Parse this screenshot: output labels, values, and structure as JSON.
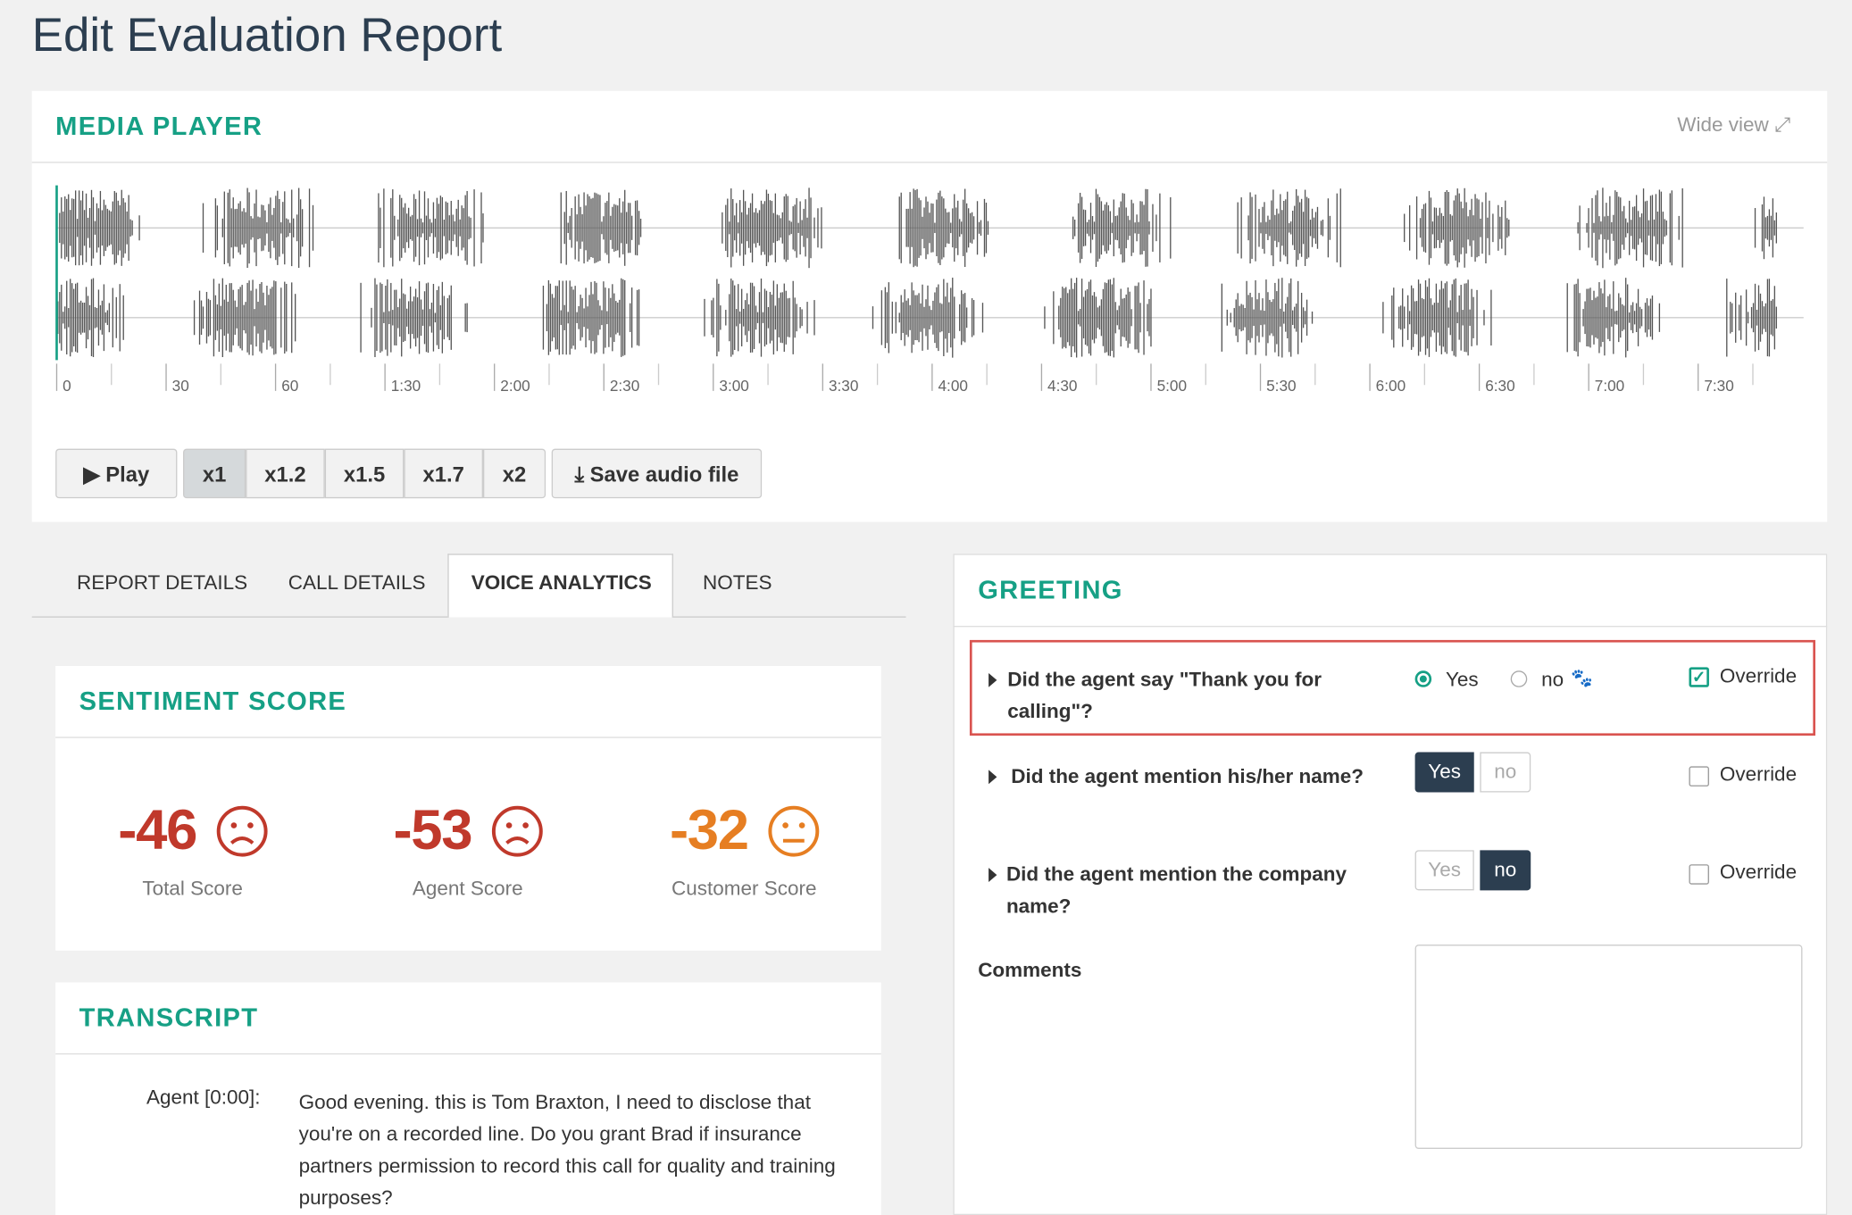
{
  "title": "Edit Evaluation Report",
  "media_player": {
    "heading": "MEDIA PLAYER",
    "wide_view": "Wide view",
    "timeline": [
      "0",
      "30",
      "60",
      "1:30",
      "2:00",
      "2:30",
      "3:00",
      "3:30",
      "4:00",
      "4:30",
      "5:00",
      "5:30",
      "6:00",
      "6:30",
      "7:00",
      "7:30"
    ],
    "play": "Play",
    "speeds": [
      "x1",
      "x1.2",
      "x1.5",
      "x1.7",
      "x2"
    ],
    "save": "Save audio file"
  },
  "tabs": [
    "REPORT DETAILS",
    "CALL DETAILS",
    "VOICE ANALYTICS",
    "NOTES"
  ],
  "sentiment": {
    "heading": "SENTIMENT SCORE",
    "scores": [
      {
        "value": -46,
        "label": "Total Score"
      },
      {
        "value": -53,
        "label": "Agent Score"
      },
      {
        "value": -32,
        "label": "Customer Score"
      }
    ]
  },
  "transcript": {
    "heading": "TRANSCRIPT",
    "entries": [
      {
        "speaker": "Agent [0:00]:",
        "text": "Good evening. this is Tom Braxton, I need to disclose that you're on a recorded line. Do you grant Brad if insurance partners permission to record this call for quality and training purposes?"
      }
    ]
  },
  "greeting": {
    "heading": "GREETING",
    "questions": [
      {
        "text": "Did the agent say \"Thank you for calling\"?",
        "yes": "Yes",
        "no": "no",
        "override": "Override"
      },
      {
        "text": "Did the agent mention his/her name?",
        "yes": "Yes",
        "no": "no",
        "override": "Override"
      },
      {
        "text": "Did the agent mention the company name?",
        "yes": "Yes",
        "no": "no",
        "override": "Override"
      }
    ],
    "comments": "Comments"
  }
}
